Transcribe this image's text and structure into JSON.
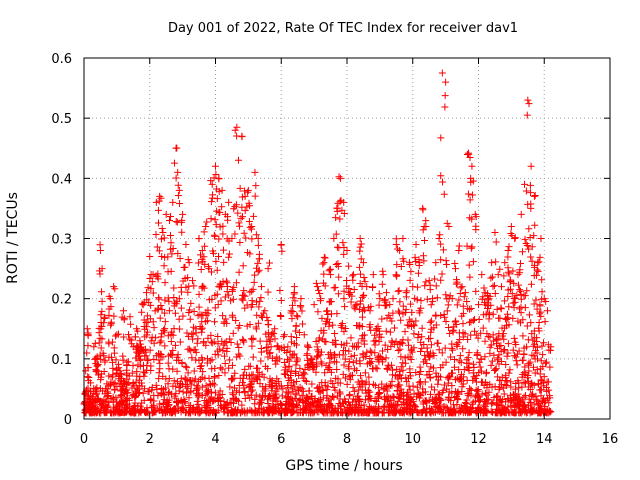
{
  "chart_data": {
    "type": "scatter",
    "title": "Day 001 of 2022, Rate Of TEC Index for receiver dav1",
    "xlabel": "GPS time / hours",
    "ylabel": "ROTI / TECUs",
    "xlim": [
      0,
      16
    ],
    "ylim": [
      0,
      0.6
    ],
    "xticks": [
      "0",
      "2",
      "4",
      "6",
      "8",
      "10",
      "12",
      "14",
      "16"
    ],
    "yticks": [
      "0",
      "0.1",
      "0.2",
      "0.3",
      "0.4",
      "0.5",
      "0.6"
    ],
    "grid": true,
    "marker": "+",
    "color": "#ff0000",
    "x_data_range": [
      0,
      14.2
    ],
    "series": [
      {
        "x": [
          0.05,
          0.1,
          0.2,
          0.3,
          0.4,
          0.5,
          0.55,
          0.6,
          0.7,
          0.8,
          0.9,
          1.0,
          1.1,
          1.2,
          1.3,
          1.4,
          1.5,
          1.6,
          1.7,
          1.8,
          1.9,
          2.0,
          2.1,
          2.2,
          2.3,
          2.4,
          2.5,
          2.6,
          2.7,
          2.8,
          2.85,
          2.9,
          3.0,
          3.1,
          3.2,
          3.3,
          3.4,
          3.5,
          3.6,
          3.7,
          3.8,
          3.9,
          4.0,
          4.1,
          4.2,
          4.3,
          4.4,
          4.5,
          4.6,
          4.65,
          4.7,
          4.8,
          4.9,
          5.0,
          5.1,
          5.2,
          5.3,
          5.4,
          5.5,
          5.6,
          5.7,
          5.8,
          5.9,
          6.0,
          6.1,
          6.2,
          6.3,
          6.4,
          6.5,
          6.6,
          6.7,
          6.8,
          6.9,
          7.0,
          7.1,
          7.2,
          7.3,
          7.4,
          7.5,
          7.6,
          7.7,
          7.8,
          7.9,
          8.0,
          8.1,
          8.2,
          8.3,
          8.4,
          8.5,
          8.6,
          8.7,
          8.8,
          8.9,
          9.0,
          9.1,
          9.2,
          9.3,
          9.4,
          9.5,
          9.6,
          9.7,
          9.8,
          9.9,
          10.0,
          10.1,
          10.2,
          10.3,
          10.4,
          10.5,
          10.6,
          10.7,
          10.8,
          10.9,
          11.0,
          11.1,
          11.2,
          11.3,
          11.4,
          11.5,
          11.6,
          11.7,
          11.8,
          11.9,
          12.0,
          12.1,
          12.2,
          12.3,
          12.4,
          12.5,
          12.6,
          12.7,
          12.8,
          12.9,
          13.0,
          13.1,
          13.2,
          13.3,
          13.4,
          13.5,
          13.6,
          13.7,
          13.8,
          13.9,
          14.0,
          14.1,
          14.2
        ],
        "y": [
          0.08,
          0.15,
          0.06,
          0.12,
          0.1,
          0.28,
          0.25,
          0.16,
          0.05,
          0.2,
          0.22,
          0.14,
          0.08,
          0.18,
          0.09,
          0.17,
          0.12,
          0.15,
          0.13,
          0.19,
          0.21,
          0.27,
          0.24,
          0.36,
          0.37,
          0.31,
          0.34,
          0.33,
          0.36,
          0.45,
          0.41,
          0.38,
          0.34,
          0.29,
          0.26,
          0.23,
          0.15,
          0.3,
          0.28,
          0.32,
          0.25,
          0.39,
          0.42,
          0.4,
          0.38,
          0.34,
          0.36,
          0.3,
          0.48,
          0.485,
          0.43,
          0.47,
          0.37,
          0.38,
          0.32,
          0.41,
          0.3,
          0.22,
          0.18,
          0.25,
          0.14,
          0.15,
          0.12,
          0.29,
          0.14,
          0.12,
          0.18,
          0.22,
          0.17,
          0.2,
          0.14,
          0.12,
          0.1,
          0.19,
          0.22,
          0.2,
          0.26,
          0.18,
          0.24,
          0.3,
          0.35,
          0.4,
          0.36,
          0.28,
          0.21,
          0.24,
          0.19,
          0.3,
          0.26,
          0.22,
          0.18,
          0.24,
          0.15,
          0.2,
          0.24,
          0.21,
          0.19,
          0.2,
          0.29,
          0.28,
          0.3,
          0.21,
          0.26,
          0.22,
          0.29,
          0.26,
          0.35,
          0.32,
          0.23,
          0.2,
          0.26,
          0.3,
          0.575,
          0.56,
          0.32,
          0.2,
          0.25,
          0.28,
          0.22,
          0.21,
          0.44,
          0.42,
          0.34,
          0.19,
          0.24,
          0.21,
          0.2,
          0.26,
          0.31,
          0.24,
          0.22,
          0.26,
          0.28,
          0.32,
          0.3,
          0.24,
          0.34,
          0.39,
          0.53,
          0.42,
          0.37,
          0.26,
          0.3,
          0.2,
          0.18,
          0.12
        ]
      }
    ]
  }
}
